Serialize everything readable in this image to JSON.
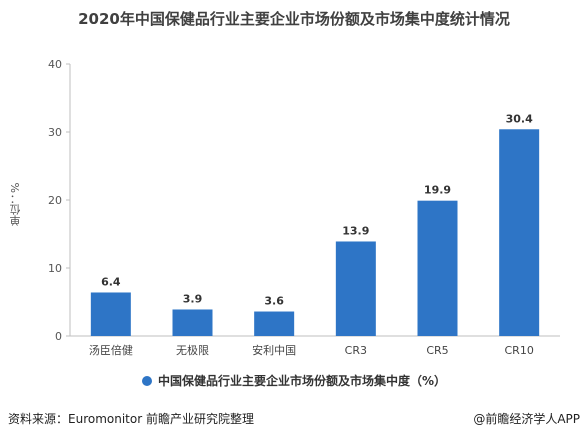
{
  "title": "2020年中国保健品行业主要企业市场份额及市场集中度统计情况",
  "footer": {
    "source": "资料来源：Euromonitor 前瞻产业研究院整理",
    "brand": "@前瞻经济学人APP"
  },
  "colors": {
    "bar": "#2e75c6",
    "axis": "#bfbfbf",
    "grid": "#d9d9d9"
  },
  "chart_data": {
    "type": "bar",
    "title": "2020年中国保健品行业主要企业市场份额及市场集中度统计情况",
    "ylabel": "单位：%",
    "xlabel": "",
    "categories": [
      "汤臣倍健",
      "无极限",
      "安利中国",
      "CR3",
      "CR5",
      "CR10"
    ],
    "series": [
      {
        "name": "中国保健品行业主要企业市场份额及市场集中度（%）",
        "values": [
          6.4,
          3.9,
          3.6,
          13.9,
          19.9,
          30.4
        ]
      }
    ],
    "data_labels": [
      "6.4",
      "3.9",
      "3.6",
      "13.9",
      "19.9",
      "30.4"
    ],
    "ylim": [
      0,
      40
    ],
    "yticks": [
      0,
      10,
      20,
      30,
      40
    ],
    "grid": false,
    "legend": "bottom"
  }
}
